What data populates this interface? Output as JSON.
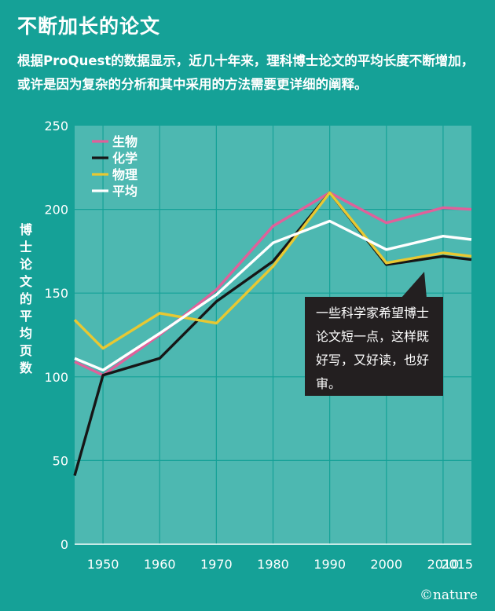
{
  "header": {
    "title": "不断加长的论文",
    "subtitle": "根据ProQuest的数据显示，近几十年来，理科博士论文的平均长度不断增加，或许是因为复杂的分析和其中采用的方法需要更详细的阐释。"
  },
  "callout": {
    "text": "一些科学家希望博士论文短一点，这样既好写，又好读，也好审。"
  },
  "logo": {
    "text": "©nature"
  },
  "colors": {
    "background": "#15a197",
    "plot_area": "#4db8b1",
    "biology": "#e0609a",
    "chemistry": "#161616",
    "physics": "#e8c832",
    "average": "#ffffff",
    "callout_bg": "#231f20"
  },
  "chart_data": {
    "type": "line",
    "ylabel": "博士论文的平均页数",
    "xlabel": "",
    "xlim": [
      1945,
      2015
    ],
    "ylim": [
      0,
      250
    ],
    "xticks": [
      1950,
      1960,
      1970,
      1980,
      1990,
      2000,
      2010,
      2015
    ],
    "yticks": [
      0,
      50,
      100,
      150,
      200,
      250
    ],
    "grid": true,
    "legend_position": "top-left",
    "x": [
      1945,
      1950,
      1960,
      1970,
      1980,
      1990,
      2000,
      2010,
      2015
    ],
    "series": [
      {
        "name": "生物",
        "color": "#e0609a",
        "values": [
          109,
          101,
          125,
          152,
          190,
          210,
          192,
          201,
          200
        ]
      },
      {
        "name": "化学",
        "color": "#161616",
        "values": [
          41,
          101,
          111,
          145,
          169,
          210,
          167,
          172,
          170
        ]
      },
      {
        "name": "物理",
        "color": "#e8c832",
        "values": [
          134,
          117,
          138,
          132,
          166,
          210,
          168,
          174,
          172
        ]
      },
      {
        "name": "平均",
        "color": "#ffffff",
        "values": [
          111,
          104,
          126,
          149,
          180,
          193,
          176,
          184,
          182
        ]
      }
    ]
  }
}
